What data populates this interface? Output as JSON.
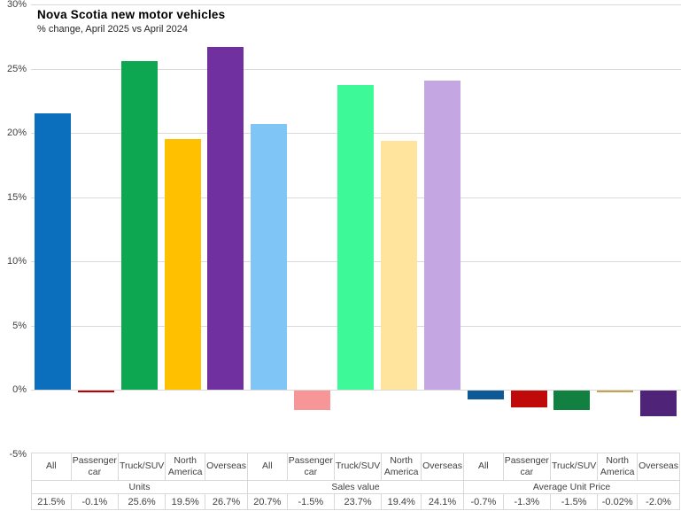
{
  "chart": {
    "title": "Nova Scotia new motor vehicles",
    "subtitle": "% change, April 2025 vs April 2024"
  },
  "chart_data": {
    "type": "bar",
    "title": "Nova Scotia new motor vehicles",
    "subtitle": "% change, April 2025 vs April 2024",
    "xlabel": "",
    "ylabel": "",
    "ylim": [
      -5,
      30
    ],
    "ytick_step": 5,
    "ytick_labels": [
      "30%",
      "25%",
      "20%",
      "15%",
      "10%",
      "5%",
      "0%",
      "-5%"
    ],
    "grid": true,
    "legend": "none",
    "categories": [
      "All",
      "Passenger car",
      "Truck/SUV",
      "North America",
      "Overseas"
    ],
    "groups": [
      {
        "name": "Units",
        "values": [
          21.5,
          -0.1,
          25.6,
          19.5,
          26.7
        ],
        "value_labels": [
          "21.5%",
          "-0.1%",
          "25.6%",
          "19.5%",
          "26.7%"
        ],
        "colors": [
          "#0B6FBE",
          "#C00000",
          "#0CA750",
          "#FFC000",
          "#7030A0"
        ]
      },
      {
        "name": "Sales value",
        "values": [
          20.7,
          -1.5,
          23.7,
          19.4,
          24.1
        ],
        "value_labels": [
          "20.7%",
          "-1.5%",
          "23.7%",
          "19.4%",
          "24.1%"
        ],
        "colors": [
          "#7FC5F6",
          "#F79696",
          "#3EF998",
          "#FEE49C",
          "#C4A7E2"
        ]
      },
      {
        "name": "Average Unit Price",
        "values": [
          -0.7,
          -1.3,
          -1.5,
          -0.02,
          -2.0
        ],
        "value_labels": [
          "-0.7%",
          "-1.3%",
          "-1.5%",
          "-0.02%",
          "-2.0%"
        ],
        "colors": [
          "#0D5A97",
          "#C00A0A",
          "#118040",
          "#C8A24B",
          "#4F2478"
        ]
      }
    ],
    "colors": {
      "gridline": "#d9d9d9",
      "axis_text": "#404040",
      "title_text": "#000000"
    }
  }
}
